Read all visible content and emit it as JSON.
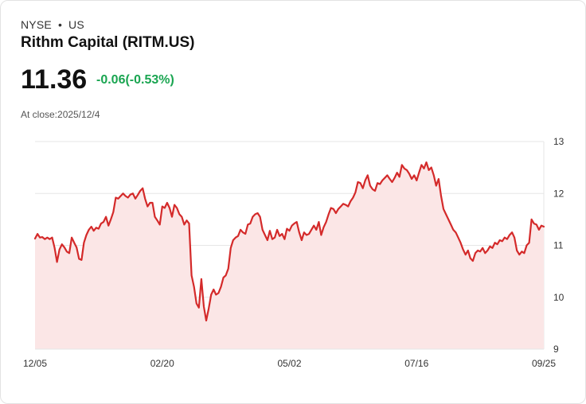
{
  "header": {
    "exchange": "NYSE",
    "separator": "•",
    "country": "US",
    "title": "Rithm Capital (RITM.US)",
    "price": "11.36",
    "change": "-0.06(-0.53%)",
    "close_label": "At close:2025/12/4"
  },
  "colors": {
    "line": "#d42a2a",
    "fill": "#fbe6e6",
    "grid": "#e6e6e6",
    "change": "#1aa551"
  },
  "chart_data": {
    "type": "area",
    "title": "Rithm Capital (RITM.US)",
    "ylim": [
      9,
      13
    ],
    "y_ticks": [
      "13",
      "12",
      "11",
      "10",
      "9"
    ],
    "x_ticks": [
      {
        "label": "12/05",
        "index": 0
      },
      {
        "label": "02/20",
        "index": 52
      },
      {
        "label": "05/02",
        "index": 104
      },
      {
        "label": "07/16",
        "index": 156
      },
      {
        "label": "09/25",
        "index": 208
      }
    ],
    "values": [
      11.13,
      11.22,
      11.15,
      11.16,
      11.12,
      11.15,
      11.12,
      11.15,
      10.95,
      10.68,
      10.92,
      11.02,
      10.96,
      10.88,
      10.85,
      11.15,
      11.05,
      10.96,
      10.74,
      10.72,
      11.05,
      11.2,
      11.3,
      11.36,
      11.28,
      11.34,
      11.32,
      11.42,
      11.45,
      11.55,
      11.38,
      11.5,
      11.64,
      11.92,
      11.9,
      11.95,
      12.0,
      11.95,
      11.92,
      11.98,
      12.0,
      11.9,
      11.97,
      12.05,
      12.1,
      11.9,
      11.75,
      11.82,
      11.82,
      11.55,
      11.48,
      11.4,
      11.75,
      11.72,
      11.82,
      11.72,
      11.55,
      11.78,
      11.72,
      11.6,
      11.55,
      11.4,
      11.48,
      11.42,
      10.42,
      10.2,
      9.88,
      9.8,
      10.35,
      9.82,
      9.55,
      9.78,
      10.05,
      10.15,
      10.05,
      10.08,
      10.2,
      10.38,
      10.42,
      10.55,
      10.95,
      11.1,
      11.15,
      11.18,
      11.3,
      11.25,
      11.22,
      11.4,
      11.42,
      11.55,
      11.6,
      11.62,
      11.55,
      11.3,
      11.2,
      11.1,
      11.28,
      11.12,
      11.15,
      11.3,
      11.18,
      11.22,
      11.12,
      11.32,
      11.28,
      11.38,
      11.42,
      11.45,
      11.25,
      11.1,
      11.25,
      11.2,
      11.22,
      11.3,
      11.38,
      11.3,
      11.45,
      11.2,
      11.35,
      11.45,
      11.6,
      11.72,
      11.7,
      11.62,
      11.7,
      11.75,
      11.8,
      11.78,
      11.75,
      11.85,
      11.92,
      12.02,
      12.22,
      12.2,
      12.1,
      12.25,
      12.35,
      12.15,
      12.08,
      12.05,
      12.2,
      12.18,
      12.25,
      12.3,
      12.35,
      12.28,
      12.22,
      12.3,
      12.4,
      12.32,
      12.55,
      12.48,
      12.45,
      12.38,
      12.28,
      12.35,
      12.25,
      12.4,
      12.55,
      12.48,
      12.6,
      12.45,
      12.5,
      12.35,
      12.15,
      12.28,
      11.95,
      11.7,
      11.6,
      11.5,
      11.4,
      11.3,
      11.25,
      11.15,
      11.05,
      10.92,
      10.82,
      10.9,
      10.75,
      10.7,
      10.85,
      10.9,
      10.88,
      10.95,
      10.85,
      10.9,
      10.98,
      10.95,
      11.05,
      11.02,
      11.1,
      11.08,
      11.15,
      11.12,
      11.2,
      11.25,
      11.15,
      10.9,
      10.82,
      10.88,
      10.85,
      11.0,
      11.05,
      11.5,
      11.42,
      11.4,
      11.3,
      11.38,
      11.36
    ]
  }
}
